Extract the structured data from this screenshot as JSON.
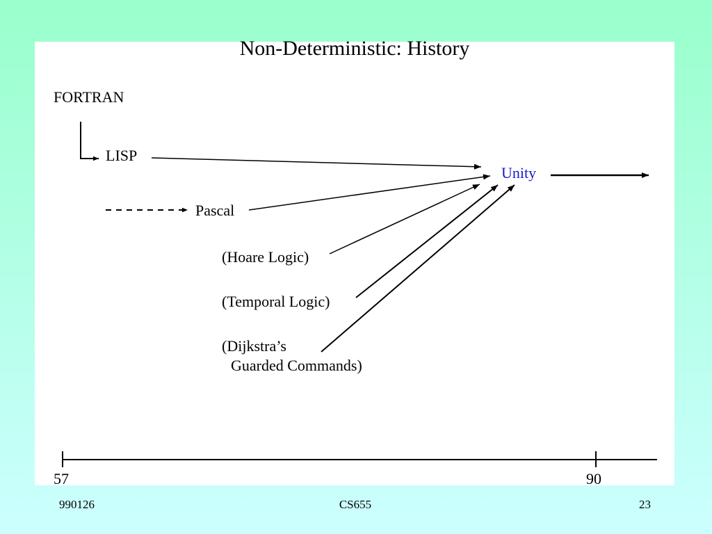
{
  "title": "Non-Deterministic: History",
  "nodes": [
    {
      "label": "FORTRAN"
    },
    {
      "label": "LISP"
    },
    {
      "label": "Pascal"
    },
    {
      "label": "(Hoare Logic)"
    },
    {
      "label": "(Temporal Logic)"
    },
    {
      "lines": [
        "(Dijkstra’s",
        "Guarded Commands)"
      ]
    },
    {
      "label": "Unity"
    }
  ],
  "timeline": {
    "start": "57",
    "end": "90"
  },
  "footer": {
    "left": "990126",
    "center": "CS655",
    "right": "23"
  }
}
